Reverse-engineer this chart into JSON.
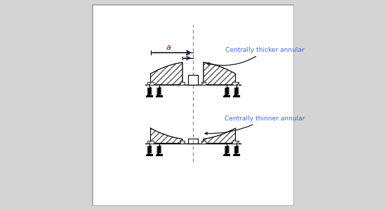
{
  "bg_color": "#d4d4d4",
  "panel_color": "#ffffff",
  "hatch_color": "#555555",
  "label_color_a": "#8b0000",
  "label_color_b": "#00008b",
  "text_color_blue": "#4169e1",
  "title1": "Centrally thicker annular",
  "title2": "Centrally thinner annular",
  "label_a": "a",
  "label_b": "b"
}
